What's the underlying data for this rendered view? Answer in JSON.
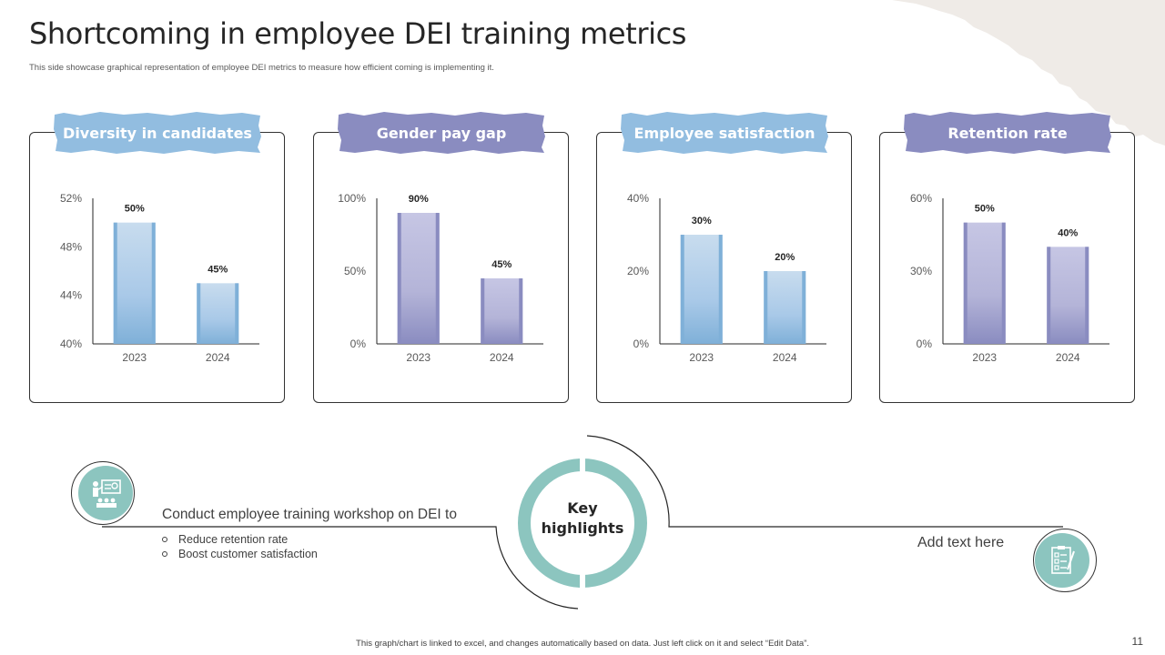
{
  "page": {
    "title": "Shortcoming in employee DEI training metrics",
    "subtitle": "This side showcase graphical representation of employee DEI  metrics to measure how efficient coming is implementing  it.",
    "footer_note": "This graph/chart is linked to excel, and changes automatically based on data. Just left click on it and select “Edit Data”.",
    "page_number": "11"
  },
  "colors": {
    "blue_bar": "#a9c9e8",
    "blue_edge": "#7fb0d8",
    "purple_bar": "#b4b4d8",
    "purple_edge": "#8a8cc0",
    "blue_label": "#92bde0",
    "purple_label": "#8a8cc0",
    "teal": "#8cc5bf"
  },
  "chart_data": [
    {
      "type": "bar",
      "title": "Diversity in candidates",
      "categories": [
        "2023",
        "2024"
      ],
      "values": [
        50,
        45
      ],
      "data_labels": [
        "50%",
        "45%"
      ],
      "ylim": [
        40,
        52
      ],
      "yticks": [
        "40%",
        "44%",
        "48%",
        "52%"
      ],
      "tick_values": [
        40,
        44,
        48,
        52
      ],
      "color": "blue"
    },
    {
      "type": "bar",
      "title": "Gender pay gap",
      "categories": [
        "2023",
        "2024"
      ],
      "values": [
        90,
        45
      ],
      "data_labels": [
        "90%",
        "45%"
      ],
      "ylim": [
        0,
        100
      ],
      "yticks": [
        "0%",
        "50%",
        "100%"
      ],
      "tick_values": [
        0,
        50,
        100
      ],
      "color": "purple"
    },
    {
      "type": "bar",
      "title": "Employee satisfaction",
      "categories": [
        "2023",
        "2024"
      ],
      "values": [
        30,
        20
      ],
      "data_labels": [
        "30%",
        "20%"
      ],
      "ylim": [
        0,
        40
      ],
      "yticks": [
        "0%",
        "20%",
        "40%"
      ],
      "tick_values": [
        0,
        20,
        40
      ],
      "color": "blue"
    },
    {
      "type": "bar",
      "title": "Retention rate",
      "categories": [
        "2023",
        "2024"
      ],
      "values": [
        50,
        40
      ],
      "data_labels": [
        "50%",
        "40%"
      ],
      "ylim": [
        0,
        60
      ],
      "yticks": [
        "0%",
        "30%",
        "60%"
      ],
      "tick_values": [
        0,
        30,
        60
      ],
      "color": "purple"
    }
  ],
  "highlights": {
    "center_line1": "Key",
    "center_line2": "highlights",
    "lead_text": "Conduct employee training workshop on DEI to",
    "bullets": [
      "Reduce retention rate",
      "Boost customer satisfaction"
    ],
    "right_text": "Add text here",
    "left_icon": "presentation-training-icon",
    "right_icon": "checklist-clipboard-icon"
  }
}
